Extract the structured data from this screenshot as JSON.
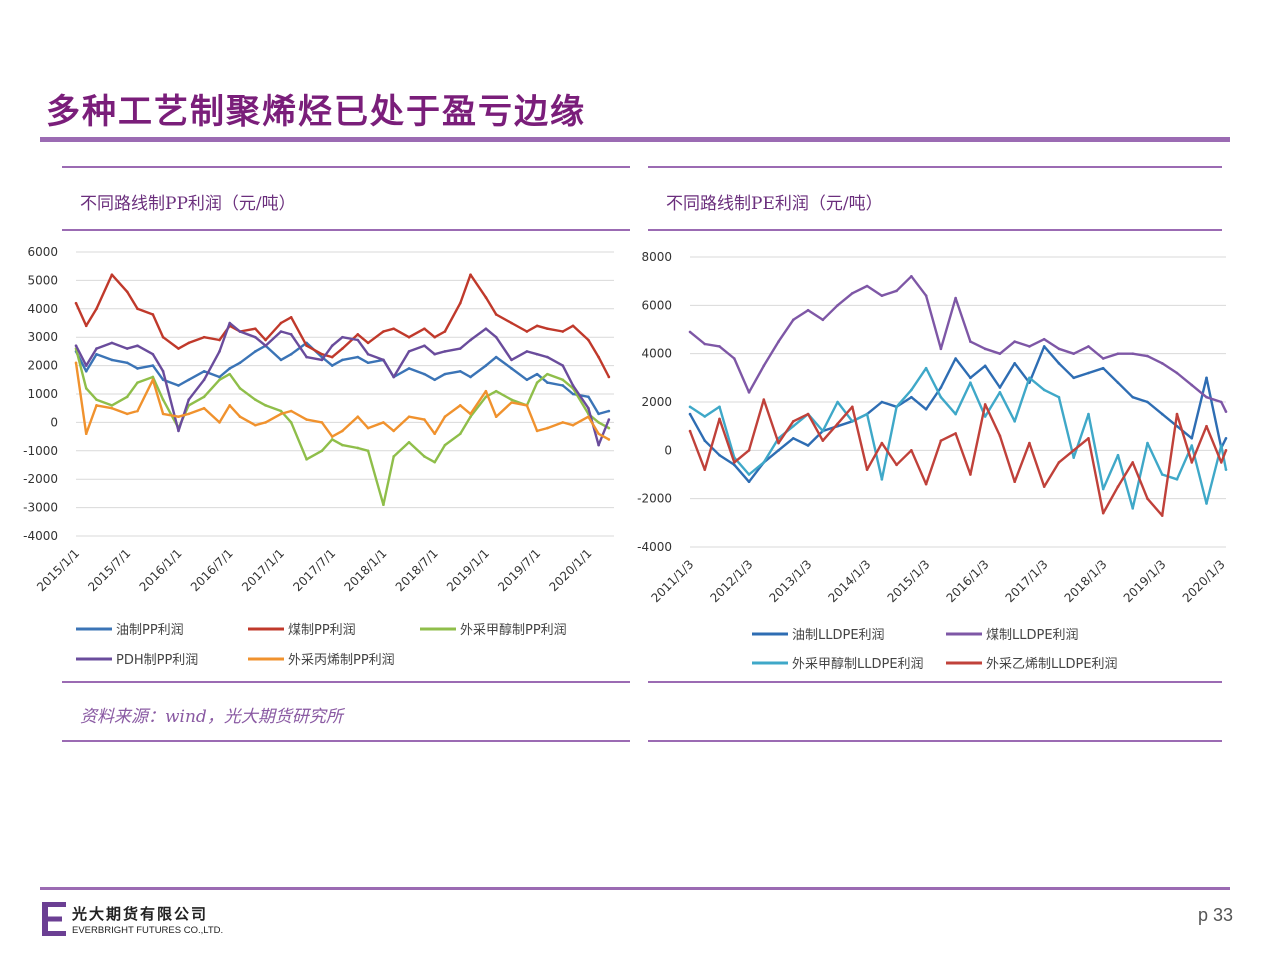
{
  "slide": {
    "title": "多种工艺制聚烯烃已处于盈亏边缘",
    "source": "资料来源：wind，光大期货研究所",
    "page_number": "p 33",
    "company_cn": "光大期货有限公司",
    "company_en": "EVERBRIGHT FUTURES CO.,LTD."
  },
  "colors": {
    "accent": "#9b6bb3",
    "title": "#7a1e7a"
  },
  "chart_data": [
    {
      "type": "line",
      "title": "不同路线制PP利润（元/吨）",
      "xlabel": "",
      "ylabel": "",
      "ylim": [
        -4000,
        6000
      ],
      "yticks": [
        6000,
        5000,
        4000,
        3000,
        2000,
        1000,
        0,
        -1000,
        -2000,
        -3000,
        -4000
      ],
      "xrange": [
        2015.0,
        2020.25
      ],
      "xticks": [
        "2015/1/1",
        "2015/7/1",
        "2016/1/1",
        "2016/7/1",
        "2017/1/1",
        "2017/7/1",
        "2018/1/1",
        "2018/7/1",
        "2019/1/1",
        "2019/7/1",
        "2020/1/1"
      ],
      "grid": true,
      "legend_position": "bottom",
      "series": [
        {
          "name": "油制PP利润",
          "color": "#3b74b6",
          "x": [
            2015.0,
            2015.1,
            2015.2,
            2015.35,
            2015.5,
            2015.6,
            2015.75,
            2015.85,
            2016.0,
            2016.1,
            2016.25,
            2016.4,
            2016.5,
            2016.6,
            2016.75,
            2016.85,
            2017.0,
            2017.1,
            2017.25,
            2017.4,
            2017.5,
            2017.6,
            2017.75,
            2017.85,
            2018.0,
            2018.1,
            2018.25,
            2018.4,
            2018.5,
            2018.6,
            2018.75,
            2018.85,
            2019.0,
            2019.1,
            2019.25,
            2019.4,
            2019.5,
            2019.6,
            2019.75,
            2019.85,
            2020.0,
            2020.1,
            2020.2
          ],
          "values": [
            2500,
            1800,
            2400,
            2200,
            2100,
            1900,
            2000,
            1500,
            1300,
            1500,
            1800,
            1600,
            1900,
            2100,
            2500,
            2700,
            2200,
            2400,
            2800,
            2300,
            2000,
            2200,
            2300,
            2100,
            2200,
            1600,
            1900,
            1700,
            1500,
            1700,
            1800,
            1600,
            2000,
            2300,
            1900,
            1500,
            1700,
            1400,
            1300,
            1000,
            900,
            300,
            400
          ]
        },
        {
          "name": "煤制PP利润",
          "color": "#c0392b",
          "x": [
            2015.0,
            2015.1,
            2015.2,
            2015.35,
            2015.5,
            2015.6,
            2015.75,
            2015.85,
            2016.0,
            2016.1,
            2016.25,
            2016.4,
            2016.5,
            2016.6,
            2016.75,
            2016.85,
            2017.0,
            2017.1,
            2017.25,
            2017.4,
            2017.5,
            2017.6,
            2017.75,
            2017.85,
            2018.0,
            2018.1,
            2018.25,
            2018.4,
            2018.5,
            2018.6,
            2018.75,
            2018.85,
            2019.0,
            2019.1,
            2019.25,
            2019.4,
            2019.5,
            2019.6,
            2019.75,
            2019.85,
            2020.0,
            2020.1,
            2020.2
          ],
          "values": [
            4200,
            3400,
            4000,
            5200,
            4600,
            4000,
            3800,
            3000,
            2600,
            2800,
            3000,
            2900,
            3400,
            3200,
            3300,
            2900,
            3500,
            3700,
            2700,
            2400,
            2300,
            2600,
            3100,
            2800,
            3200,
            3300,
            3000,
            3300,
            3000,
            3200,
            4200,
            5200,
            4400,
            3800,
            3500,
            3200,
            3400,
            3300,
            3200,
            3400,
            2900,
            2300,
            1600
          ]
        },
        {
          "name": "外采甲醇制PP利润",
          "color": "#8fbe4a",
          "x": [
            2015.0,
            2015.1,
            2015.2,
            2015.35,
            2015.5,
            2015.6,
            2015.75,
            2015.85,
            2016.0,
            2016.1,
            2016.25,
            2016.4,
            2016.5,
            2016.6,
            2016.75,
            2016.85,
            2017.0,
            2017.1,
            2017.25,
            2017.4,
            2017.5,
            2017.6,
            2017.75,
            2017.85,
            2018.0,
            2018.1,
            2018.25,
            2018.4,
            2018.5,
            2018.6,
            2018.75,
            2018.85,
            2019.0,
            2019.1,
            2019.25,
            2019.4,
            2019.5,
            2019.6,
            2019.75,
            2019.85,
            2020.0,
            2020.1,
            2020.2
          ],
          "values": [
            2600,
            1200,
            800,
            600,
            900,
            1400,
            1600,
            800,
            -200,
            600,
            900,
            1500,
            1700,
            1200,
            800,
            600,
            400,
            0,
            -1300,
            -1000,
            -600,
            -800,
            -900,
            -1000,
            -2900,
            -1200,
            -700,
            -1200,
            -1400,
            -800,
            -400,
            200,
            900,
            1100,
            800,
            600,
            1400,
            1700,
            1500,
            1200,
            300,
            0,
            -200
          ]
        },
        {
          "name": "PDH制PP利润",
          "color": "#6a4c9c",
          "x": [
            2015.0,
            2015.1,
            2015.2,
            2015.35,
            2015.5,
            2015.6,
            2015.75,
            2015.85,
            2016.0,
            2016.1,
            2016.25,
            2016.4,
            2016.5,
            2016.6,
            2016.75,
            2016.85,
            2017.0,
            2017.1,
            2017.25,
            2017.4,
            2017.5,
            2017.6,
            2017.75,
            2017.85,
            2018.0,
            2018.1,
            2018.25,
            2018.4,
            2018.5,
            2018.6,
            2018.75,
            2018.85,
            2019.0,
            2019.1,
            2019.25,
            2019.4,
            2019.5,
            2019.6,
            2019.75,
            2019.85,
            2020.0,
            2020.1,
            2020.2
          ],
          "values": [
            2700,
            2000,
            2600,
            2800,
            2600,
            2700,
            2400,
            1800,
            -300,
            800,
            1500,
            2500,
            3500,
            3200,
            3000,
            2700,
            3200,
            3100,
            2300,
            2200,
            2700,
            3000,
            2900,
            2400,
            2200,
            1600,
            2500,
            2700,
            2400,
            2500,
            2600,
            2900,
            3300,
            3000,
            2200,
            2500,
            2400,
            2300,
            2000,
            1300,
            500,
            -800,
            100
          ]
        },
        {
          "name": "外采丙烯制PP利润",
          "color": "#f0922e",
          "x": [
            2015.0,
            2015.1,
            2015.2,
            2015.35,
            2015.5,
            2015.6,
            2015.75,
            2015.85,
            2016.0,
            2016.1,
            2016.25,
            2016.4,
            2016.5,
            2016.6,
            2016.75,
            2016.85,
            2017.0,
            2017.1,
            2017.25,
            2017.4,
            2017.5,
            2017.6,
            2017.75,
            2017.85,
            2018.0,
            2018.1,
            2018.25,
            2018.4,
            2018.5,
            2018.6,
            2018.75,
            2018.85,
            2019.0,
            2019.1,
            2019.25,
            2019.4,
            2019.5,
            2019.6,
            2019.75,
            2019.85,
            2020.0,
            2020.1,
            2020.2
          ],
          "values": [
            2100,
            -400,
            600,
            500,
            300,
            400,
            1500,
            300,
            200,
            300,
            500,
            0,
            600,
            200,
            -100,
            0,
            300,
            400,
            100,
            0,
            -500,
            -300,
            200,
            -200,
            0,
            -300,
            200,
            100,
            -400,
            200,
            600,
            300,
            1100,
            200,
            700,
            600,
            -300,
            -200,
            0,
            -100,
            200,
            -400,
            -600
          ]
        }
      ]
    },
    {
      "type": "line",
      "title": "不同路线制PE利润（元/吨）",
      "xlabel": "",
      "ylabel": "",
      "ylim": [
        -4000,
        8000
      ],
      "yticks": [
        8000,
        6000,
        4000,
        2000,
        0,
        -2000,
        -4000
      ],
      "xrange": [
        2011.0,
        2020.08
      ],
      "xticks": [
        "2011/1/3",
        "2012/1/3",
        "2013/1/3",
        "2014/1/3",
        "2015/1/3",
        "2016/1/3",
        "2017/1/3",
        "2018/1/3",
        "2019/1/3",
        "2020/1/3"
      ],
      "grid": true,
      "legend_position": "bottom",
      "series": [
        {
          "name": "油制LLDPE利润",
          "color": "#2e6db3",
          "x": [
            2011.0,
            2011.25,
            2011.5,
            2011.75,
            2012.0,
            2012.25,
            2012.5,
            2012.75,
            2013.0,
            2013.25,
            2013.5,
            2013.75,
            2014.0,
            2014.25,
            2014.5,
            2014.75,
            2015.0,
            2015.25,
            2015.5,
            2015.75,
            2016.0,
            2016.25,
            2016.5,
            2016.75,
            2017.0,
            2017.25,
            2017.5,
            2017.75,
            2018.0,
            2018.25,
            2018.5,
            2018.75,
            2019.0,
            2019.25,
            2019.5,
            2019.75,
            2020.0,
            2020.08
          ],
          "values": [
            1500,
            400,
            -200,
            -600,
            -1300,
            -500,
            0,
            500,
            200,
            800,
            1000,
            1200,
            1500,
            2000,
            1800,
            2200,
            1700,
            2600,
            3800,
            3000,
            3500,
            2600,
            3600,
            2800,
            4300,
            3600,
            3000,
            3200,
            3400,
            2800,
            2200,
            2000,
            1500,
            1000,
            500,
            3000,
            100,
            500
          ]
        },
        {
          "name": "煤制LLDPE利润",
          "color": "#7e57a6",
          "x": [
            2011.0,
            2011.25,
            2011.5,
            2011.75,
            2012.0,
            2012.25,
            2012.5,
            2012.75,
            2013.0,
            2013.25,
            2013.5,
            2013.75,
            2014.0,
            2014.25,
            2014.5,
            2014.75,
            2015.0,
            2015.25,
            2015.5,
            2015.75,
            2016.0,
            2016.25,
            2016.5,
            2016.75,
            2017.0,
            2017.25,
            2017.5,
            2017.75,
            2018.0,
            2018.25,
            2018.5,
            2018.75,
            2019.0,
            2019.25,
            2019.5,
            2019.75,
            2020.0,
            2020.08
          ],
          "values": [
            4900,
            4400,
            4300,
            3800,
            2400,
            3500,
            4500,
            5400,
            5800,
            5400,
            6000,
            6500,
            6800,
            6400,
            6600,
            7200,
            6400,
            4200,
            6300,
            4500,
            4200,
            4000,
            4500,
            4300,
            4600,
            4200,
            4000,
            4300,
            3800,
            4000,
            4000,
            3900,
            3600,
            3200,
            2700,
            2200,
            2000,
            1600
          ]
        },
        {
          "name": "外采甲醇制LLDPE利润",
          "color": "#3fa8c8",
          "x": [
            2011.0,
            2011.25,
            2011.5,
            2011.75,
            2012.0,
            2012.25,
            2012.5,
            2012.75,
            2013.0,
            2013.25,
            2013.5,
            2013.75,
            2014.0,
            2014.25,
            2014.5,
            2014.75,
            2015.0,
            2015.25,
            2015.5,
            2015.75,
            2016.0,
            2016.25,
            2016.5,
            2016.75,
            2017.0,
            2017.25,
            2017.5,
            2017.75,
            2018.0,
            2018.25,
            2018.5,
            2018.75,
            2019.0,
            2019.25,
            2019.5,
            2019.75,
            2020.0,
            2020.08
          ],
          "values": [
            1800,
            1400,
            1800,
            -300,
            -1000,
            -500,
            500,
            1000,
            1500,
            800,
            2000,
            1200,
            1500,
            -1200,
            1800,
            2500,
            3400,
            2200,
            1500,
            2800,
            1400,
            2400,
            1200,
            3000,
            2500,
            2200,
            -300,
            1500,
            -1600,
            -200,
            -2400,
            300,
            -1000,
            -1200,
            200,
            -2200,
            200,
            -800
          ]
        },
        {
          "name": "外采乙烯制LLDPE利润",
          "color": "#c0413a",
          "x": [
            2011.0,
            2011.25,
            2011.5,
            2011.75,
            2012.0,
            2012.25,
            2012.5,
            2012.75,
            2013.0,
            2013.25,
            2013.5,
            2013.75,
            2014.0,
            2014.25,
            2014.5,
            2014.75,
            2015.0,
            2015.25,
            2015.5,
            2015.75,
            2016.0,
            2016.25,
            2016.5,
            2016.75,
            2017.0,
            2017.25,
            2017.5,
            2017.75,
            2018.0,
            2018.25,
            2018.5,
            2018.75,
            2019.0,
            2019.25,
            2019.5,
            2019.75,
            2020.0,
            2020.08
          ],
          "values": [
            800,
            -800,
            1300,
            -500,
            0,
            2100,
            300,
            1200,
            1500,
            400,
            1100,
            1800,
            -800,
            300,
            -600,
            0,
            -1400,
            400,
            700,
            -1000,
            1900,
            600,
            -1300,
            300,
            -1500,
            -500,
            0,
            500,
            -2600,
            -1500,
            -500,
            -2000,
            -2700,
            1500,
            -500,
            1000,
            -500,
            0
          ]
        }
      ]
    }
  ]
}
